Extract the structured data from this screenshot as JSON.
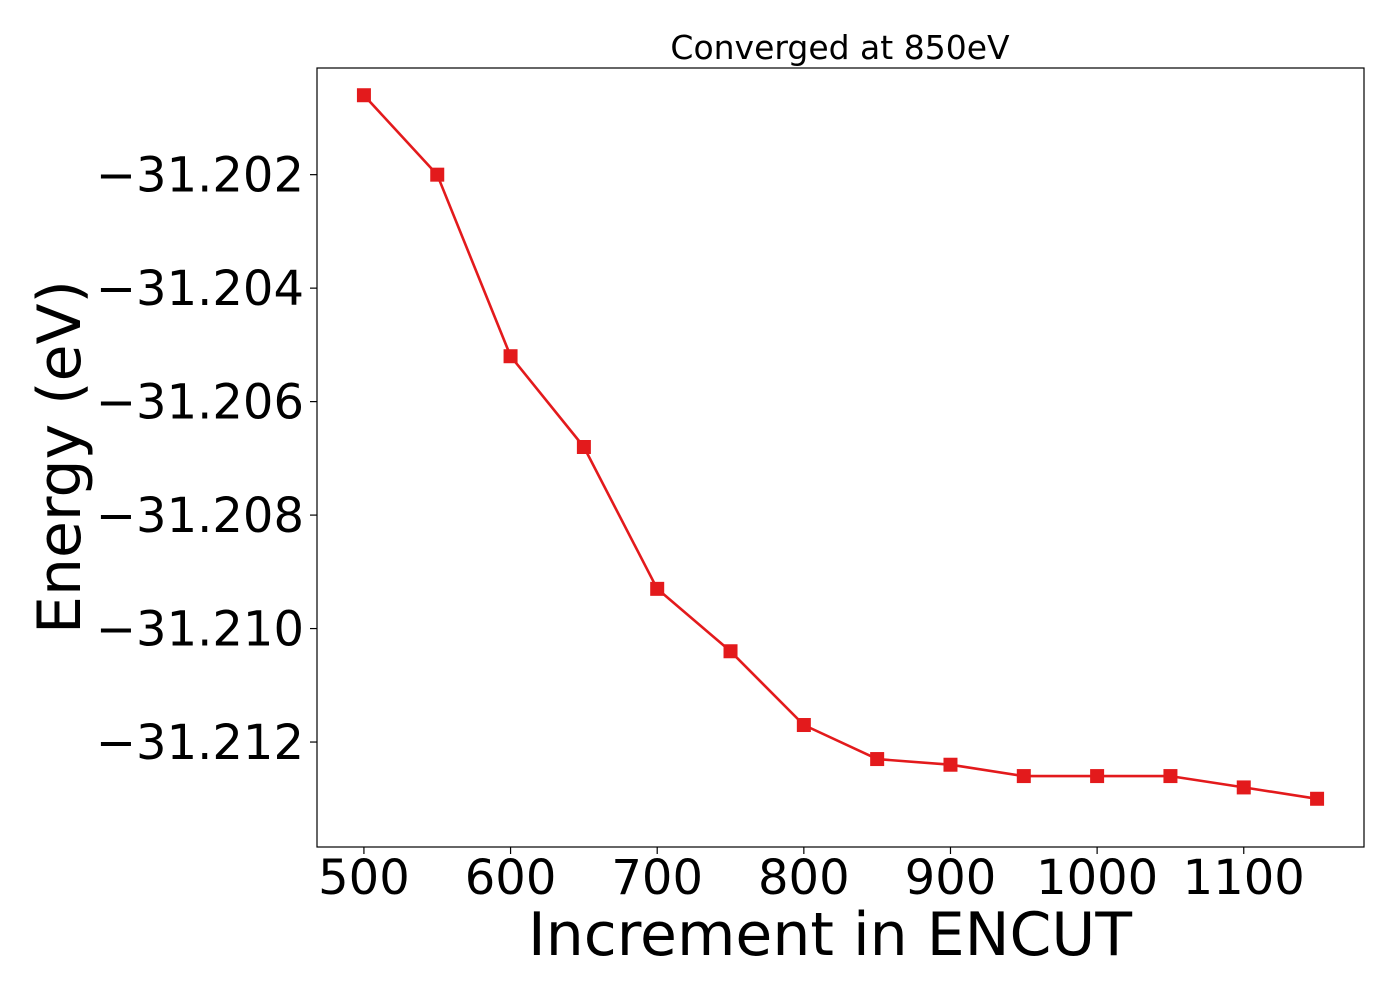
{
  "chart_data": {
    "type": "line",
    "title": "Converged at 850eV",
    "xlabel": "Increment in ENCUT",
    "ylabel": "Energy (eV)",
    "x_ticks": [
      500,
      600,
      700,
      800,
      900,
      1000,
      1100
    ],
    "x_tick_labels": [
      "500",
      "600",
      "700",
      "800",
      "900",
      "1000",
      "1100"
    ],
    "y_ticks": [
      -31.202,
      -31.204,
      -31.206,
      -31.208,
      -31.21,
      -31.212
    ],
    "y_tick_labels": [
      "−31.202",
      "−31.204",
      "−31.206",
      "−31.208",
      "−31.210",
      "−31.212"
    ],
    "xlim": [
      468,
      1182
    ],
    "ylim": [
      -31.21385,
      -31.20012
    ],
    "grid": false,
    "series": [
      {
        "color": "#e31a1c",
        "marker": "square",
        "x": [
          500,
          550,
          600,
          650,
          700,
          750,
          800,
          850,
          900,
          950,
          1000,
          1050,
          1100,
          1150
        ],
        "y": [
          -31.2006,
          -31.202,
          -31.2052,
          -31.2068,
          -31.2093,
          -31.2104,
          -31.2117,
          -31.2123,
          -31.2124,
          -31.2126,
          -31.2126,
          -31.2126,
          -31.2128,
          -31.213
        ]
      }
    ]
  }
}
